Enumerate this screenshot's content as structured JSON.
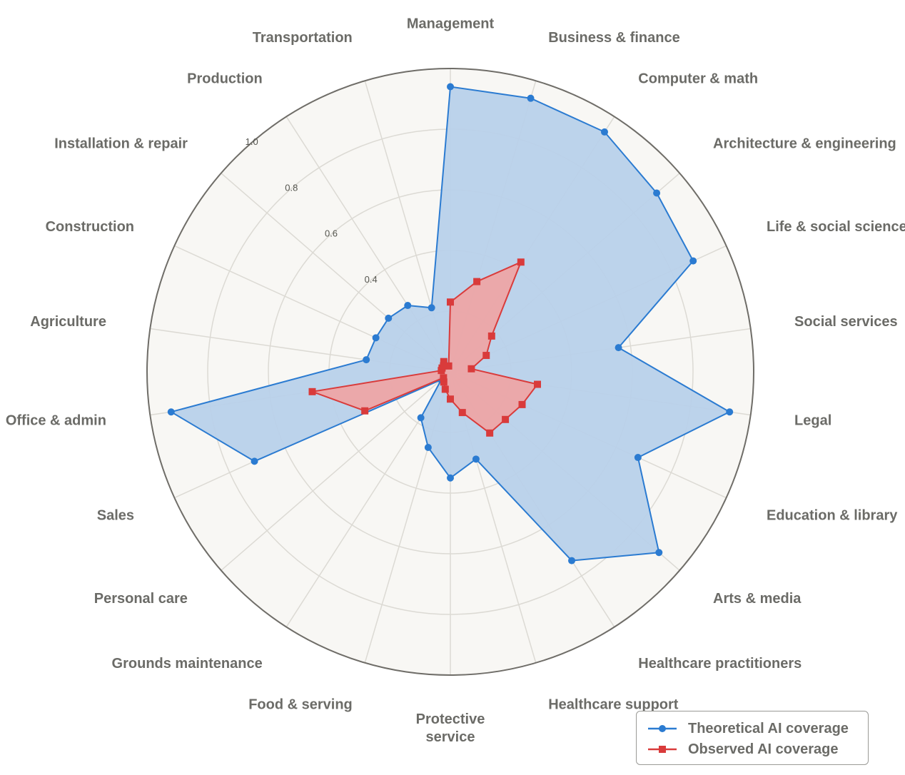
{
  "chart_data": {
    "type": "radar",
    "categories": [
      "Management",
      "Business & finance",
      "Computer & math",
      "Architecture & engineering",
      "Life & social sciences",
      "Social services",
      "Legal",
      "Education & library",
      "Arts & media",
      "Healthcare practitioners",
      "Healthcare support",
      "Protective service",
      "Food & serving",
      "Grounds maintenance",
      "Personal care",
      "Sales",
      "Office & admin",
      "Agriculture",
      "Construction",
      "Installation & repair",
      "Production",
      "Transportation"
    ],
    "radial_ticks": [
      "0.4",
      "0.6",
      "0.8",
      "1.0"
    ],
    "series": [
      {
        "name": "Theoretical AI coverage",
        "color": "#2b7bd1",
        "fill": "#b8d1ea",
        "marker": "circle",
        "values": [
          0.94,
          0.94,
          0.94,
          0.9,
          0.88,
          0.56,
          0.93,
          0.68,
          0.91,
          0.74,
          0.3,
          0.35,
          0.26,
          0.18,
          0.04,
          0.71,
          0.93,
          0.28,
          0.27,
          0.27,
          0.26,
          0.22
        ]
      },
      {
        "name": "Observed AI coverage",
        "color": "#d93b3b",
        "fill": "#f0a3a3",
        "marker": "square",
        "values": [
          0.23,
          0.31,
          0.43,
          0.18,
          0.13,
          0.07,
          0.29,
          0.26,
          0.24,
          0.24,
          0.14,
          0.09,
          0.06,
          0.04,
          0.03,
          0.31,
          0.46,
          0.03,
          0.03,
          0.03,
          0.04,
          0.02
        ]
      }
    ],
    "grid": true,
    "legend_position": "bottom-right",
    "background": "#f8f7f4",
    "gridline_color": "#dcdad4",
    "outer_ring_color": "#6f6d68",
    "label_color": "#6b6b67"
  },
  "legend": {
    "items": [
      {
        "label": "Theoretical AI coverage",
        "color": "#2b7bd1",
        "marker": "circle"
      },
      {
        "label": "Observed AI coverage",
        "color": "#d93b3b",
        "marker": "square"
      }
    ]
  }
}
